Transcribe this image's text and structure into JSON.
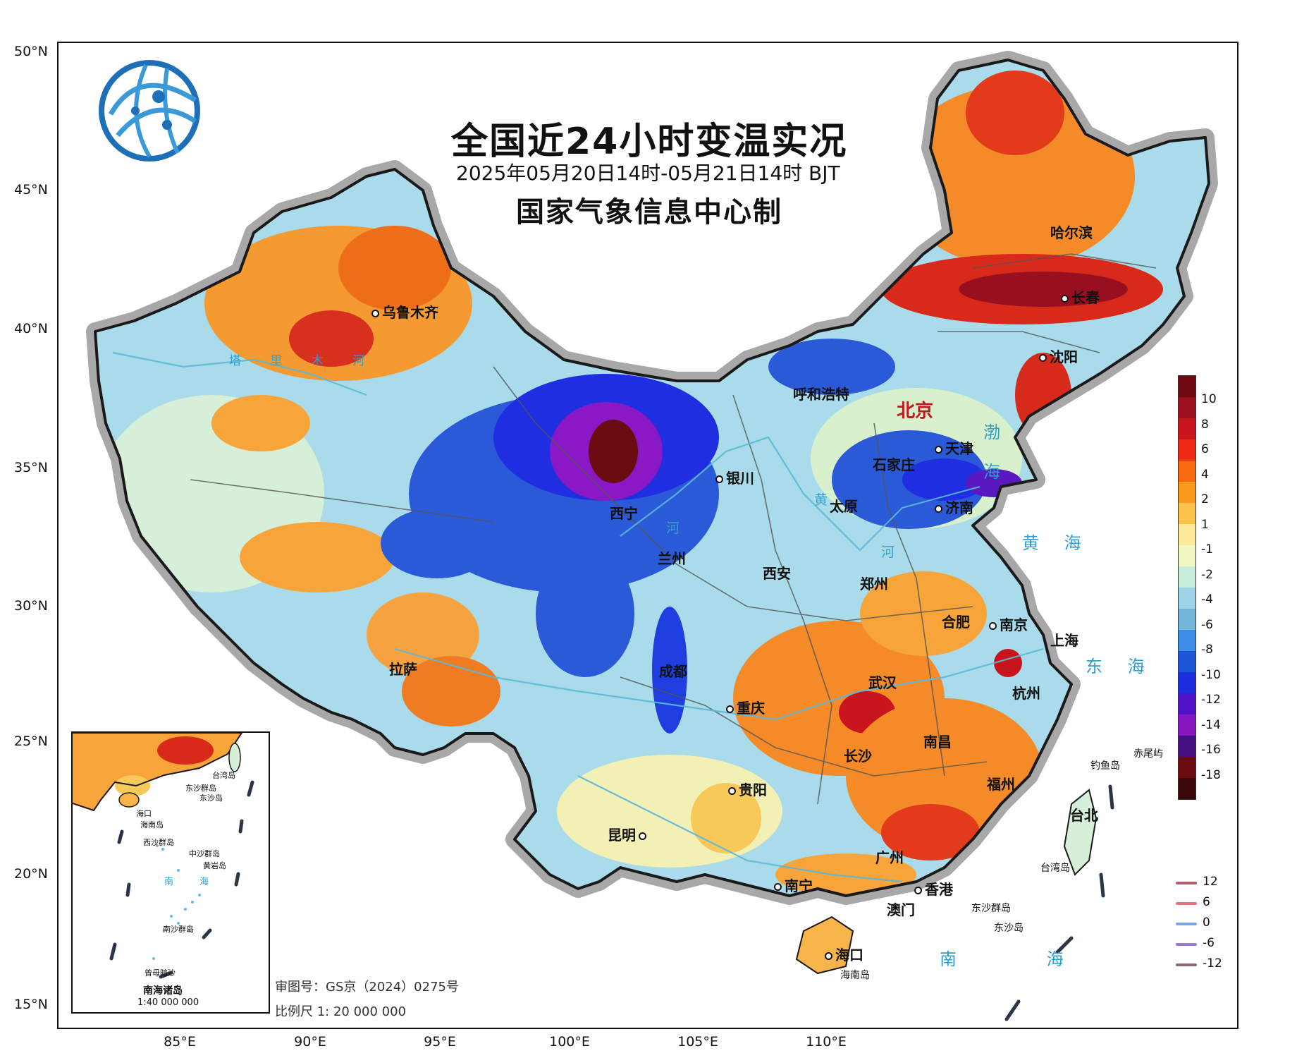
{
  "title": "全国近24小时变温实况",
  "subtitle": "2025年05月20日14时-05月21日14时 BJT",
  "producer": "国家气象信息中心制",
  "logo_icon": "cma-globe-logo",
  "lat_labels": [
    "50°N",
    "45°N",
    "40°N",
    "35°N",
    "30°N",
    "25°N",
    "20°N",
    "15°N"
  ],
  "lon_labels": [
    "85°E",
    "90°E",
    "95°E",
    "100°E",
    "105°E",
    "110°E"
  ],
  "cities": {
    "urumqi": "乌鲁木齐",
    "harbin": "哈尔滨",
    "changchun": "长春",
    "shenyang": "沈阳",
    "hohhot": "呼和浩特",
    "beijing": "北京",
    "tianjin": "天津",
    "shijiazhuang": "石家庄",
    "taiyuan": "太原",
    "jinan": "济南",
    "yinchuan": "银川",
    "xining": "西宁",
    "lanzhou": "兰州",
    "xian": "西安",
    "zhengzhou": "郑州",
    "hefei": "合肥",
    "nanjing": "南京",
    "shanghai": "上海",
    "lhasa": "拉萨",
    "chengdu": "成都",
    "wuhan": "武汉",
    "hangzhou": "杭州",
    "chongqing": "重庆",
    "changsha": "长沙",
    "nanchang": "南昌",
    "guiyang": "贵阳",
    "fuzhou": "福州",
    "taipei": "台北",
    "kunming": "昆明",
    "guangzhou": "广州",
    "nanning": "南宁",
    "hongkong": "香港",
    "macau": "澳门",
    "haikou": "海口"
  },
  "seas": {
    "bohai_1": "渤",
    "bohai_2": "海",
    "yellow_sea": "黄 海",
    "east_sea": "东 海",
    "south_sea": "南 海"
  },
  "rivers": {
    "tarim": "塔 里 木 河",
    "yellow_1": "黄",
    "yellow_2": "河",
    "yellow_3": "河"
  },
  "islands": {
    "diaoyu": "钓鱼岛",
    "chiwei": "赤尾屿",
    "taiwan": "台湾岛",
    "hainan": "海南岛",
    "dongsha_group": "东沙群岛",
    "dongsha": "东沙岛"
  },
  "inset": {
    "title": "南海诸岛",
    "scale": "1:40 000 000",
    "labels": {
      "taiwan": "台湾岛",
      "dongsha_group": "东沙群岛",
      "dongsha": "东沙岛",
      "haikou": "海口",
      "hainan": "海南岛",
      "xisha": "西沙群岛",
      "zhongsha": "中沙群岛",
      "huangyan": "黄岩岛",
      "nansha": "南沙群岛",
      "zengmu": "曾母暗沙",
      "sea_1": "南",
      "sea_2": "海"
    }
  },
  "footer": {
    "approval": "审图号：GS京（2024）0275号",
    "scale": "比例尺  1: 20 000 000"
  },
  "colorbar": {
    "colors": [
      "#6e0a12",
      "#9a1020",
      "#c8141c",
      "#ee2a14",
      "#f76a10",
      "#fa9a1e",
      "#fcc24c",
      "#fde99a",
      "#f2f8c4",
      "#c6ecdc",
      "#9ed4e8",
      "#72b6dc",
      "#3c8ee6",
      "#1e56d8",
      "#1c2ee0",
      "#5012c8",
      "#8616c0",
      "#461080",
      "#6a0c10",
      "#3a0808"
    ],
    "labels": [
      "10",
      "8",
      "6",
      "4",
      "2",
      "1",
      "-1",
      "-2",
      "-4",
      "-6",
      "-8",
      "-10",
      "-12",
      "-14",
      "-16",
      "-18"
    ]
  },
  "contour_legend": [
    {
      "label": "12",
      "color": "#b25a6e"
    },
    {
      "label": "6",
      "color": "#e5757a"
    },
    {
      "label": "0",
      "color": "#7aa8e4"
    },
    {
      "label": "-6",
      "color": "#9a7ad0"
    },
    {
      "label": "-12",
      "color": "#8a6a78"
    }
  ]
}
